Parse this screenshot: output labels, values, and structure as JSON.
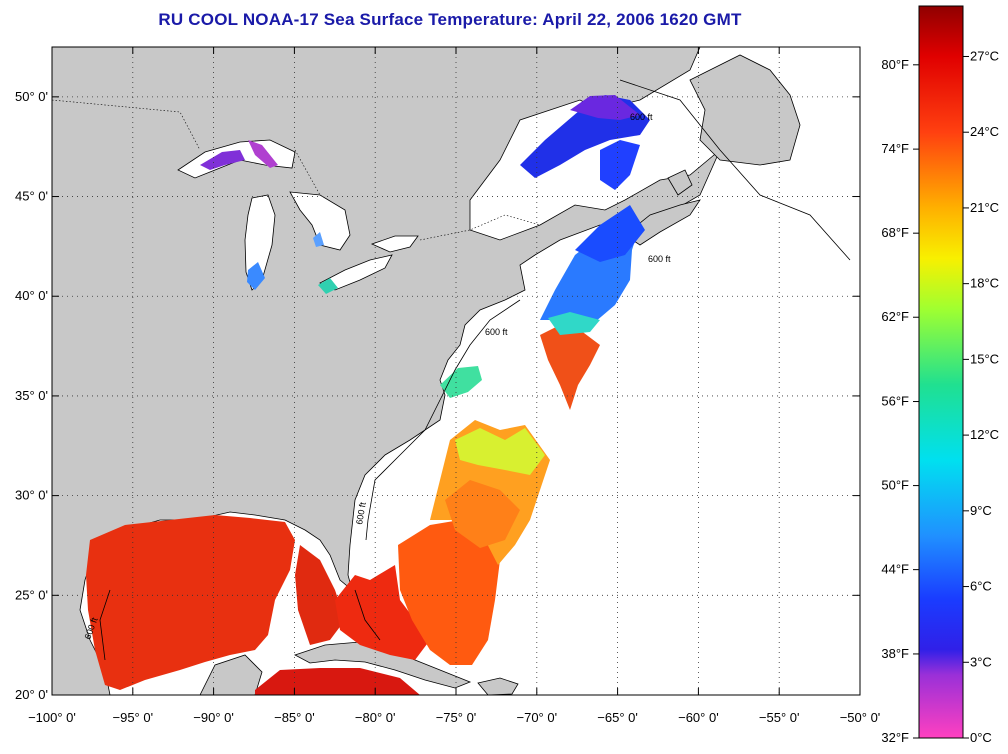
{
  "title": "RU COOL  NOAA-17  Sea Surface Temperature:  April 22, 2006 1620 GMT",
  "map": {
    "lon_range": [
      -100,
      -50
    ],
    "lat_range": [
      20,
      52.5
    ],
    "lon_ticks": [
      {
        "v": -100,
        "label": "−100° 0'"
      },
      {
        "v": -95,
        "label": "−95° 0'"
      },
      {
        "v": -90,
        "label": "−90° 0'"
      },
      {
        "v": -85,
        "label": "−85° 0'"
      },
      {
        "v": -80,
        "label": "−80° 0'"
      },
      {
        "v": -75,
        "label": "−75° 0'"
      },
      {
        "v": -70,
        "label": "−70° 0'"
      },
      {
        "v": -65,
        "label": "−65° 0'"
      },
      {
        "v": -60,
        "label": "−60° 0'"
      },
      {
        "v": -55,
        "label": "−55° 0'"
      },
      {
        "v": -50,
        "label": "−50° 0'"
      }
    ],
    "lat_ticks": [
      {
        "v": 20,
        "label": "20° 0'"
      },
      {
        "v": 25,
        "label": "25° 0'"
      },
      {
        "v": 30,
        "label": "30° 0'"
      },
      {
        "v": 35,
        "label": "35° 0'"
      },
      {
        "v": 40,
        "label": "40° 0'"
      },
      {
        "v": 45,
        "label": "45° 0'"
      },
      {
        "v": 50,
        "label": "50° 0'"
      }
    ],
    "grid": "dotted",
    "contour_label": "600 ft",
    "colors": {
      "land": "#c8c8c8",
      "water": "#ffffff",
      "border": "#000000"
    }
  },
  "colorbar": {
    "range_c": [
      0,
      29
    ],
    "celsius_ticks": [
      {
        "v": 0,
        "label": "0°C"
      },
      {
        "v": 3,
        "label": "3°C"
      },
      {
        "v": 6,
        "label": "6°C"
      },
      {
        "v": 9,
        "label": "9°C"
      },
      {
        "v": 12,
        "label": "12°C"
      },
      {
        "v": 15,
        "label": "15°C"
      },
      {
        "v": 18,
        "label": "18°C"
      },
      {
        "v": 21,
        "label": "21°C"
      },
      {
        "v": 24,
        "label": "24°C"
      },
      {
        "v": 27,
        "label": "27°C"
      }
    ],
    "fahrenheit_ticks": [
      {
        "v": 0,
        "label": "32°F"
      },
      {
        "v": 3.33,
        "label": "38°F"
      },
      {
        "v": 6.67,
        "label": "44°F"
      },
      {
        "v": 10,
        "label": "50°F"
      },
      {
        "v": 13.33,
        "label": "56°F"
      },
      {
        "v": 16.67,
        "label": "62°F"
      },
      {
        "v": 20,
        "label": "68°F"
      },
      {
        "v": 23.33,
        "label": "74°F"
      },
      {
        "v": 26.67,
        "label": "80°F"
      }
    ],
    "stops": [
      {
        "c": 0,
        "color": "#ff40c0"
      },
      {
        "c": 2.5,
        "color": "#9a30d8"
      },
      {
        "c": 3.5,
        "color": "#3020e8"
      },
      {
        "c": 5.5,
        "color": "#1a3cff"
      },
      {
        "c": 8,
        "color": "#2090ff"
      },
      {
        "c": 11,
        "color": "#00e0f0"
      },
      {
        "c": 14,
        "color": "#20e090"
      },
      {
        "c": 17,
        "color": "#a0ff30"
      },
      {
        "c": 19,
        "color": "#f8f000"
      },
      {
        "c": 21,
        "color": "#ffb000"
      },
      {
        "c": 24,
        "color": "#ff4010"
      },
      {
        "c": 27,
        "color": "#e00000"
      },
      {
        "c": 29,
        "color": "#900000"
      }
    ]
  }
}
